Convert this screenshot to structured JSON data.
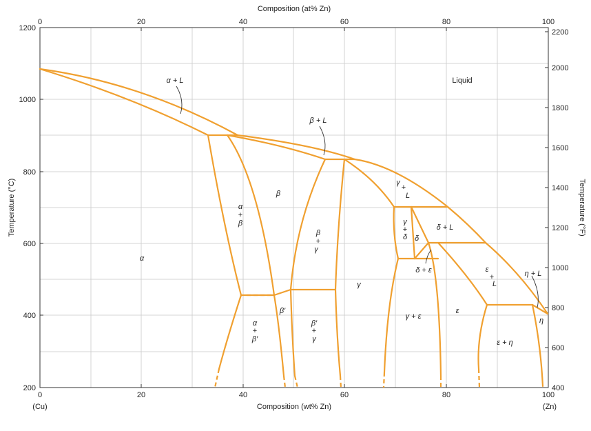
{
  "diagram": {
    "top_axis": {
      "title": "Composition (at% Zn)",
      "ticks": [
        "0",
        "20",
        "40",
        "60",
        "80",
        "100"
      ]
    },
    "bottom_axis": {
      "title": "Composition (wt% Zn)",
      "ticks": [
        "0",
        "20",
        "40",
        "60",
        "80",
        "100"
      ],
      "end_left": "(Cu)",
      "end_right": "(Zn)"
    },
    "left_axis": {
      "title": "Temperature (°C)",
      "ticks": [
        "200",
        "400",
        "600",
        "800",
        "1000",
        "1200"
      ]
    },
    "right_axis": {
      "title": "Temperature (°F)",
      "ticks": [
        "400",
        "600",
        "800",
        "1000",
        "1200",
        "1400",
        "1600",
        "1800",
        "2000",
        "2200"
      ]
    },
    "regions": {
      "liquid": "Liquid",
      "alpha": "α",
      "alpha_L": "α + L",
      "beta": "β",
      "beta_L": "β + L",
      "alpha_beta": [
        "α",
        "+",
        "β"
      ],
      "beta_gamma": [
        "β",
        "+",
        "γ"
      ],
      "gamma": "γ",
      "gamma_L": [
        "γ",
        "+",
        "L"
      ],
      "gamma_delta": [
        "γ",
        "+",
        "δ"
      ],
      "delta": "δ",
      "delta_L": "δ + L",
      "delta_epsilon": "δ + ε",
      "gamma_epsilon": "γ + ε",
      "epsilon": "ε",
      "epsilon_L": [
        "ε",
        "+",
        "L"
      ],
      "eta_L": "η + L",
      "eta": "η",
      "epsilon_eta": "ε + η",
      "beta_prime": "β′",
      "alpha_betap": [
        "α",
        "+",
        "β′"
      ],
      "betap_gamma": [
        "β′",
        "+",
        "γ"
      ]
    },
    "colors": {
      "phase_line": "#f0a030",
      "grid": "#c8c8c8"
    }
  }
}
